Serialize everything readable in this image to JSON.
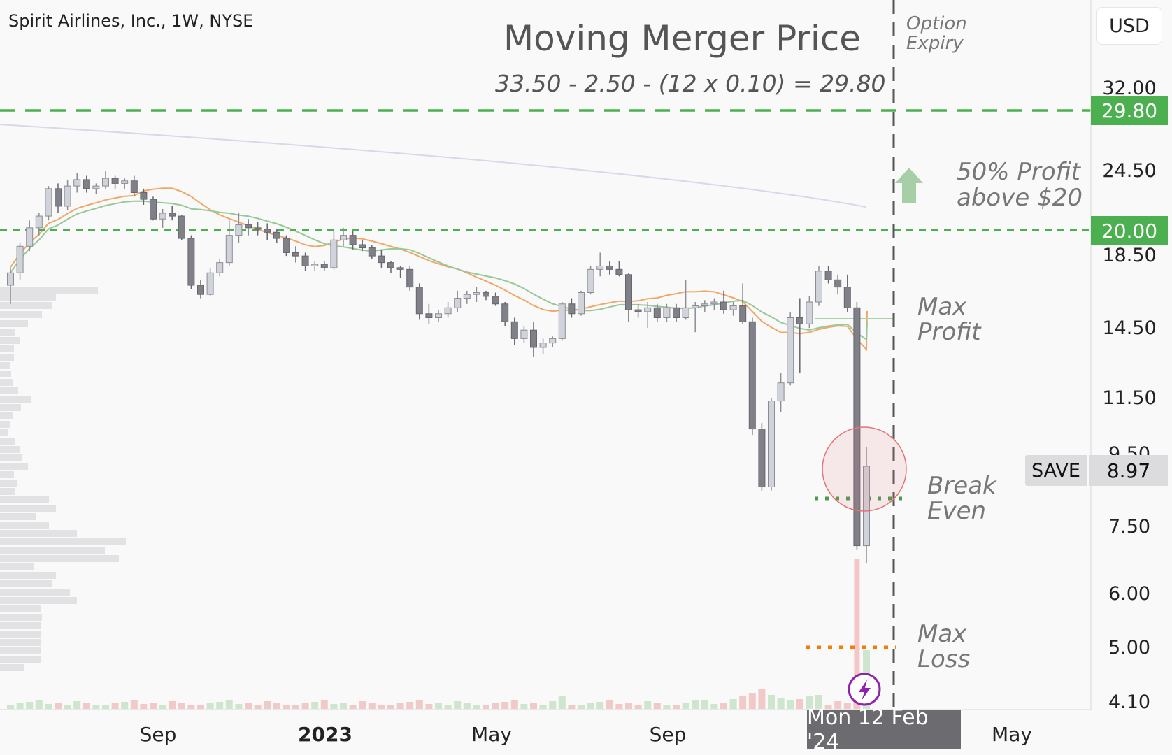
{
  "header": {
    "symbol": "Spirit Airlines, Inc., 1W, NYSE",
    "currency": "USD"
  },
  "annotations": {
    "title": "Moving Merger Price",
    "formula": "33.50 - 2.50 - (12 x 0.10) = 29.80",
    "option_expiry": [
      "Option",
      "Expiry"
    ],
    "profit_50": [
      "50% Profit",
      "above $20"
    ],
    "max_profit": [
      "Max",
      "Profit"
    ],
    "break_even": [
      "Break",
      "Even"
    ],
    "max_loss": [
      "Max",
      "Loss"
    ]
  },
  "price_labels": {
    "level_high": "29.80",
    "level_mid": "20.00",
    "save_symbol": "SAVE",
    "save_price": "8.97"
  },
  "cursor_date": "Mon 12 Feb '24",
  "colors": {
    "up_candle": "#d1d3da",
    "down_candle": "#808088",
    "green_level": "#4caf50",
    "orange_ma": "#f0a868",
    "green_ma": "#98c898",
    "purple_ma": "#d8d8e8",
    "circle": "#e57373",
    "max_loss_dots": "#f57c00"
  },
  "chart_data": {
    "type": "candlestick",
    "timeframe": "1W",
    "y_scale": "log",
    "y_ticks": [
      "32.00",
      "24.50",
      "18.50",
      "14.50",
      "11.50",
      "9.50",
      "7.50",
      "6.00",
      "5.00",
      "4.10"
    ],
    "x_ticks": [
      "Sep",
      "2023",
      "May",
      "Sep",
      "May"
    ],
    "levels": [
      {
        "price": 29.8,
        "style": "dashed",
        "color": "green"
      },
      {
        "price": 20.0,
        "style": "dashed",
        "color": "green"
      },
      {
        "price": 15.2,
        "style": "solid",
        "label": "Max Profit"
      },
      {
        "price": 8.4,
        "style": "dotted",
        "label": "Break Even"
      },
      {
        "price": 5.0,
        "style": "dotted",
        "label": "Max Loss"
      }
    ],
    "last_price": 8.97,
    "candles": [
      [
        16.5,
        17.5,
        15.5,
        17.2
      ],
      [
        17.2,
        19.0,
        16.8,
        18.8
      ],
      [
        18.8,
        20.5,
        18.5,
        20.0
      ],
      [
        20.0,
        21.0,
        19.5,
        20.8
      ],
      [
        20.8,
        23.0,
        20.5,
        22.8
      ],
      [
        22.8,
        23.2,
        21.0,
        21.5
      ],
      [
        21.5,
        23.5,
        21.2,
        23.0
      ],
      [
        23.0,
        24.0,
        22.5,
        23.5
      ],
      [
        23.5,
        23.8,
        22.5,
        22.8
      ],
      [
        22.8,
        23.2,
        22.4,
        23.0
      ],
      [
        23.0,
        24.2,
        22.8,
        23.6
      ],
      [
        23.6,
        23.8,
        22.8,
        23.2
      ],
      [
        23.2,
        23.6,
        22.8,
        23.4
      ],
      [
        23.4,
        23.8,
        22.2,
        22.5
      ],
      [
        22.5,
        22.8,
        21.6,
        22.0
      ],
      [
        22.0,
        22.2,
        20.5,
        20.6
      ],
      [
        20.6,
        21.3,
        20.0,
        21.0
      ],
      [
        21.0,
        21.5,
        20.5,
        20.8
      ],
      [
        20.8,
        20.9,
        19.2,
        19.3
      ],
      [
        19.3,
        19.5,
        16.3,
        16.5
      ],
      [
        16.5,
        16.8,
        15.8,
        16.0
      ],
      [
        16.0,
        17.5,
        15.9,
        17.2
      ],
      [
        17.2,
        18.0,
        17.0,
        17.8
      ],
      [
        17.8,
        20.5,
        17.6,
        19.5
      ],
      [
        19.5,
        21.0,
        19.0,
        20.2
      ],
      [
        20.2,
        20.6,
        19.5,
        20.0
      ],
      [
        20.0,
        20.4,
        19.5,
        19.9
      ],
      [
        19.9,
        20.3,
        19.2,
        19.7
      ],
      [
        19.7,
        19.9,
        19.0,
        19.3
      ],
      [
        19.3,
        19.5,
        18.2,
        18.4
      ],
      [
        18.4,
        18.8,
        17.8,
        18.2
      ],
      [
        18.2,
        18.4,
        17.3,
        17.6
      ],
      [
        17.6,
        17.9,
        17.3,
        17.7
      ],
      [
        17.7,
        17.9,
        17.3,
        17.5
      ],
      [
        17.5,
        19.8,
        17.4,
        19.2
      ],
      [
        19.2,
        20.0,
        18.8,
        19.5
      ],
      [
        19.5,
        19.8,
        18.6,
        18.9
      ],
      [
        18.9,
        19.2,
        18.5,
        18.7
      ],
      [
        18.7,
        18.9,
        18.0,
        18.2
      ],
      [
        18.2,
        18.6,
        17.5,
        17.8
      ],
      [
        17.8,
        17.9,
        17.2,
        17.5
      ],
      [
        17.5,
        17.6,
        16.9,
        17.4
      ],
      [
        17.4,
        17.6,
        16.2,
        16.4
      ],
      [
        16.4,
        16.6,
        14.7,
        15.0
      ],
      [
        15.0,
        15.5,
        14.5,
        14.8
      ],
      [
        14.8,
        15.2,
        14.6,
        15.0
      ],
      [
        15.0,
        15.6,
        14.8,
        15.3
      ],
      [
        15.3,
        16.2,
        15.1,
        15.8
      ],
      [
        15.8,
        16.2,
        15.5,
        16.0
      ],
      [
        16.0,
        16.4,
        15.6,
        16.1
      ],
      [
        16.1,
        16.2,
        15.7,
        15.9
      ],
      [
        15.9,
        16.1,
        15.4,
        15.5
      ],
      [
        15.5,
        15.6,
        14.4,
        14.6
      ],
      [
        14.6,
        14.8,
        13.5,
        13.8
      ],
      [
        13.8,
        14.4,
        13.6,
        14.2
      ],
      [
        14.2,
        14.6,
        13.0,
        13.4
      ],
      [
        13.4,
        13.8,
        13.1,
        13.6
      ],
      [
        13.6,
        13.9,
        13.4,
        13.8
      ],
      [
        13.8,
        15.6,
        13.7,
        15.5
      ],
      [
        15.5,
        15.8,
        14.8,
        15.0
      ],
      [
        15.0,
        16.2,
        14.9,
        16.1
      ],
      [
        16.1,
        17.6,
        16.0,
        17.4
      ],
      [
        17.4,
        18.4,
        17.0,
        17.6
      ],
      [
        17.6,
        17.9,
        17.1,
        17.4
      ],
      [
        17.4,
        17.9,
        17.0,
        17.1
      ],
      [
        17.1,
        17.2,
        14.6,
        15.2
      ],
      [
        15.2,
        15.5,
        14.8,
        15.1
      ],
      [
        15.1,
        15.6,
        14.3,
        15.3
      ],
      [
        15.3,
        15.5,
        14.6,
        14.8
      ],
      [
        14.8,
        15.5,
        14.6,
        15.3
      ],
      [
        15.3,
        15.5,
        14.6,
        14.8
      ],
      [
        14.8,
        16.8,
        14.7,
        15.3
      ],
      [
        15.3,
        15.6,
        14.1,
        15.4
      ],
      [
        15.4,
        15.7,
        15.1,
        15.5
      ],
      [
        15.5,
        15.8,
        15.2,
        15.6
      ],
      [
        15.6,
        16.2,
        15.0,
        15.2
      ],
      [
        15.2,
        15.6,
        14.9,
        15.4
      ],
      [
        15.4,
        16.6,
        14.5,
        14.6
      ],
      [
        14.6,
        14.8,
        10.0,
        10.2
      ],
      [
        10.2,
        10.4,
        8.3,
        8.4
      ],
      [
        8.4,
        11.3,
        8.3,
        11.2
      ],
      [
        11.2,
        12.3,
        10.8,
        11.9
      ],
      [
        11.9,
        15.1,
        11.8,
        14.8
      ],
      [
        14.8,
        15.8,
        12.3,
        14.5
      ],
      [
        14.5,
        15.9,
        14.3,
        15.6
      ],
      [
        15.6,
        17.6,
        15.4,
        17.3
      ],
      [
        17.3,
        17.6,
        16.6,
        16.8
      ],
      [
        16.8,
        17.1,
        16.0,
        16.4
      ],
      [
        16.4,
        17.1,
        15.1,
        15.3
      ],
      [
        15.3,
        15.6,
        6.8,
        6.9
      ],
      [
        6.9,
        9.6,
        6.5,
        9.0
      ]
    ]
  }
}
